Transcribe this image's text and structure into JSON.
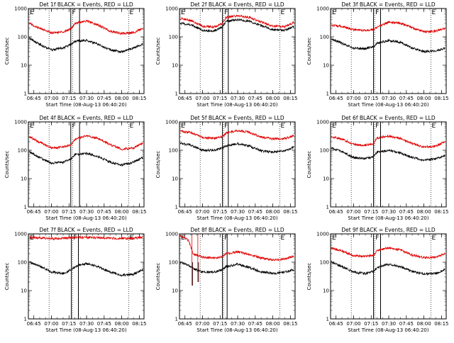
{
  "colors": {
    "events": "#000000",
    "lld": "#e00000",
    "frame": "#000000"
  },
  "shared": {
    "ylabel": "Counts/sec",
    "xlabel": "Start Time (08-Aug-13 06:40:20)",
    "xticks": [
      "06:45",
      "07:00",
      "07:15",
      "07:30",
      "07:45",
      "08:00",
      "08:15"
    ],
    "yticks": [
      "1",
      "10",
      "100",
      "1000"
    ]
  },
  "chart_data": [
    {
      "type": "line",
      "title": "Det 1f BLACK = Events, RED = LLD",
      "ylog": true,
      "ylim": [
        1,
        1000
      ],
      "xlim": [
        "06:40:20",
        "08:19"
      ],
      "xticks": [
        "06:45",
        "07:00",
        "07:15",
        "07:30",
        "07:45",
        "08:00",
        "08:15"
      ],
      "vlines_dotted": [
        "06:58",
        "07:18",
        "08:06"
      ],
      "vbars": [
        [
          "07:16:30",
          "07:24"
        ]
      ],
      "markers": [
        [
          "06:41",
          "E"
        ],
        [
          "07:17",
          "F"
        ],
        [
          "08:06",
          "E"
        ]
      ],
      "series": [
        {
          "name": "Events",
          "x": [
            "06:41",
            "06:50",
            "07:00",
            "07:10",
            "07:17",
            "07:20",
            "07:30",
            "07:40",
            "07:50",
            "08:00",
            "08:10",
            "08:18"
          ],
          "values": [
            90,
            55,
            35,
            40,
            55,
            70,
            75,
            55,
            35,
            30,
            40,
            55
          ]
        },
        {
          "name": "LLD",
          "x": [
            "06:41",
            "06:50",
            "07:00",
            "07:10",
            "07:17",
            "07:20",
            "07:30",
            "07:40",
            "07:50",
            "08:00",
            "08:10",
            "08:18"
          ],
          "values": [
            300,
            200,
            140,
            150,
            200,
            300,
            360,
            260,
            160,
            130,
            140,
            200
          ]
        }
      ]
    },
    {
      "type": "line",
      "title": "Det 2f BLACK = Events, RED = LLD",
      "ylog": true,
      "ylim": [
        1,
        1000
      ],
      "xlim": [
        "06:40:20",
        "08:19"
      ],
      "xticks": [
        "06:45",
        "07:00",
        "07:15",
        "07:30",
        "07:45",
        "08:00",
        "08:15"
      ],
      "vlines_dotted": [
        "06:58",
        "07:18",
        "08:06"
      ],
      "vbars": [
        [
          "07:17",
          "07:22"
        ]
      ],
      "markers": [
        [
          "06:41",
          "E"
        ],
        [
          "07:18",
          "F"
        ],
        [
          "08:06",
          "E"
        ]
      ],
      "series": [
        {
          "name": "Events",
          "x": [
            "06:41",
            "06:50",
            "07:00",
            "07:10",
            "07:17",
            "07:20",
            "07:30",
            "07:40",
            "07:50",
            "08:00",
            "08:10",
            "08:18"
          ],
          "values": [
            300,
            270,
            170,
            160,
            220,
            350,
            400,
            350,
            250,
            180,
            170,
            230
          ]
        },
        {
          "name": "LLD",
          "x": [
            "06:41",
            "06:50",
            "07:00",
            "07:10",
            "07:17",
            "07:20",
            "07:30",
            "07:40",
            "07:50",
            "08:00",
            "08:10",
            "08:18"
          ],
          "values": [
            450,
            380,
            240,
            220,
            300,
            480,
            560,
            480,
            340,
            240,
            230,
            320
          ]
        }
      ]
    },
    {
      "type": "line",
      "title": "Det 3f BLACK = Events, RED = LLD",
      "ylog": true,
      "ylim": [
        1,
        1000
      ],
      "xlim": [
        "06:40:20",
        "08:19"
      ],
      "xticks": [
        "06:45",
        "07:00",
        "07:15",
        "07:30",
        "07:45",
        "08:00",
        "08:15"
      ],
      "vlines_dotted": [
        "06:58",
        "07:18",
        "08:06"
      ],
      "vbars": [
        [
          "07:17",
          "07:23"
        ]
      ],
      "markers": [
        [
          "06:41",
          "E"
        ],
        [
          "07:18",
          "F"
        ],
        [
          "08:06",
          "E"
        ]
      ],
      "series": [
        {
          "name": "Events",
          "x": [
            "06:41",
            "06:50",
            "07:00",
            "07:10",
            "07:17",
            "07:20",
            "07:30",
            "07:40",
            "07:50",
            "08:00",
            "08:10",
            "08:18"
          ],
          "values": [
            85,
            60,
            40,
            38,
            45,
            60,
            75,
            65,
            40,
            30,
            32,
            40
          ]
        },
        {
          "name": "LLD",
          "x": [
            "06:41",
            "06:50",
            "07:00",
            "07:10",
            "07:17",
            "07:20",
            "07:30",
            "07:40",
            "07:50",
            "08:00",
            "08:10",
            "08:18"
          ],
          "values": [
            260,
            230,
            180,
            170,
            180,
            220,
            330,
            300,
            210,
            150,
            160,
            200
          ]
        }
      ]
    },
    {
      "type": "line",
      "title": "Det 4f BLACK = Events, RED = LLD",
      "ylog": true,
      "ylim": [
        1,
        1000
      ],
      "xlim": [
        "06:40:20",
        "08:19"
      ],
      "xticks": [
        "06:45",
        "07:00",
        "07:15",
        "07:30",
        "07:45",
        "08:00",
        "08:15"
      ],
      "vlines_dotted": [
        "06:58",
        "07:18",
        "08:06"
      ],
      "vbars": [
        [
          "07:16:30",
          "07:24"
        ]
      ],
      "markers": [
        [
          "06:41",
          "E"
        ],
        [
          "07:17",
          "F"
        ],
        [
          "08:06",
          "E"
        ]
      ],
      "series": [
        {
          "name": "Events",
          "x": [
            "06:41",
            "06:50",
            "07:00",
            "07:10",
            "07:17",
            "07:20",
            "07:30",
            "07:40",
            "07:50",
            "08:00",
            "08:10",
            "08:18"
          ],
          "values": [
            90,
            55,
            35,
            38,
            50,
            70,
            78,
            60,
            38,
            30,
            38,
            55
          ]
        },
        {
          "name": "LLD",
          "x": [
            "06:41",
            "06:50",
            "07:00",
            "07:10",
            "07:17",
            "07:20",
            "07:30",
            "07:40",
            "07:50",
            "08:00",
            "08:10",
            "08:18"
          ],
          "values": [
            300,
            190,
            120,
            130,
            160,
            240,
            330,
            260,
            160,
            110,
            120,
            180
          ]
        }
      ]
    },
    {
      "type": "line",
      "title": "Det 5f BLACK = Events, RED = LLD",
      "ylog": true,
      "ylim": [
        1,
        1000
      ],
      "xlim": [
        "06:40:20",
        "08:19"
      ],
      "xticks": [
        "06:45",
        "07:00",
        "07:15",
        "07:30",
        "07:45",
        "08:00",
        "08:15"
      ],
      "vlines_dotted": [
        "06:58",
        "07:18",
        "08:06"
      ],
      "vbars": [
        [
          "07:17",
          "07:22"
        ]
      ],
      "markers": [
        [
          "06:41",
          "E"
        ],
        [
          "07:18",
          "F"
        ],
        [
          "08:06",
          "E"
        ]
      ],
      "series": [
        {
          "name": "Events",
          "x": [
            "06:41",
            "06:50",
            "07:00",
            "07:10",
            "07:17",
            "07:20",
            "07:30",
            "07:40",
            "07:50",
            "08:00",
            "08:10",
            "08:18"
          ],
          "values": [
            180,
            150,
            100,
            100,
            120,
            140,
            170,
            140,
            95,
            85,
            95,
            130
          ]
        },
        {
          "name": "LLD",
          "x": [
            "06:41",
            "06:50",
            "07:00",
            "07:10",
            "07:17",
            "07:20",
            "07:30",
            "07:40",
            "07:50",
            "08:00",
            "08:10",
            "08:18"
          ],
          "values": [
            470,
            420,
            280,
            260,
            300,
            400,
            500,
            430,
            290,
            250,
            260,
            320
          ]
        }
      ]
    },
    {
      "type": "line",
      "title": "Det 6f BLACK = Events, RED = LLD",
      "ylog": true,
      "ylim": [
        1,
        1000
      ],
      "xlim": [
        "06:40:20",
        "08:19"
      ],
      "xticks": [
        "06:45",
        "07:00",
        "07:15",
        "07:30",
        "07:45",
        "08:00",
        "08:15"
      ],
      "vlines_dotted": [
        "06:58",
        "07:18",
        "08:06"
      ],
      "vbars": [
        [
          "07:17",
          "07:23"
        ]
      ],
      "markers": [
        [
          "06:41",
          "E"
        ],
        [
          "07:18",
          "F"
        ],
        [
          "08:06",
          "E"
        ]
      ],
      "series": [
        {
          "name": "Events",
          "x": [
            "06:41",
            "06:50",
            "07:00",
            "07:10",
            "07:17",
            "07:20",
            "07:30",
            "07:40",
            "07:50",
            "08:00",
            "08:10",
            "08:18"
          ],
          "values": [
            120,
            90,
            55,
            50,
            60,
            85,
            100,
            80,
            55,
            45,
            50,
            65
          ]
        },
        {
          "name": "LLD",
          "x": [
            "06:41",
            "06:50",
            "07:00",
            "07:10",
            "07:17",
            "07:20",
            "07:30",
            "07:40",
            "07:50",
            "08:00",
            "08:10",
            "08:18"
          ],
          "values": [
            300,
            250,
            160,
            150,
            170,
            270,
            320,
            260,
            170,
            130,
            140,
            200
          ]
        }
      ]
    },
    {
      "type": "line",
      "title": "Det 7f BLACK = Events, RED = LLD",
      "ylog": true,
      "ylim": [
        1,
        1000
      ],
      "xlim": [
        "06:40:20",
        "08:19"
      ],
      "xticks": [
        "06:45",
        "07:00",
        "07:15",
        "07:30",
        "07:45",
        "08:00",
        "08:15"
      ],
      "vlines_dotted": [
        "06:58",
        "07:18",
        "08:06"
      ],
      "vbars": [
        [
          "07:17",
          "07:23"
        ]
      ],
      "markers": [
        [
          "06:41",
          "E"
        ],
        [
          "07:18",
          "F"
        ],
        [
          "08:06",
          "E"
        ]
      ],
      "series": [
        {
          "name": "Events",
          "x": [
            "06:41",
            "06:50",
            "07:00",
            "07:10",
            "07:17",
            "07:20",
            "07:30",
            "07:40",
            "07:50",
            "08:00",
            "08:10",
            "08:18"
          ],
          "values": [
            100,
            75,
            45,
            40,
            55,
            70,
            90,
            70,
            45,
            35,
            38,
            55
          ]
        },
        {
          "name": "LLD",
          "x": [
            "06:41",
            "06:50",
            "07:00",
            "07:10",
            "07:17",
            "07:20",
            "07:30",
            "07:40",
            "07:50",
            "08:00",
            "08:10",
            "08:18"
          ],
          "values": [
            750,
            720,
            680,
            700,
            720,
            740,
            760,
            730,
            700,
            690,
            700,
            750
          ]
        }
      ]
    },
    {
      "type": "line",
      "title": "Det 8f BLACK = Events, RED = LLD",
      "ylog": true,
      "ylim": [
        1,
        1000
      ],
      "xlim": [
        "06:40:20",
        "08:19"
      ],
      "xticks": [
        "06:45",
        "07:00",
        "07:15",
        "07:30",
        "07:45",
        "08:00",
        "08:15"
      ],
      "vlines_dotted": [
        "06:58",
        "07:18",
        "08:06"
      ],
      "vbars": [
        [
          "07:17",
          "07:21"
        ]
      ],
      "markers": [
        [
          "06:41",
          "E"
        ],
        [
          "07:18",
          "F"
        ],
        [
          "08:06",
          "E"
        ]
      ],
      "spikes": [
        [
          "06:51",
          15,
          1000
        ],
        [
          "06:56",
          20,
          1000
        ]
      ],
      "series": [
        {
          "name": "Events",
          "x": [
            "06:41",
            "06:48",
            "06:52",
            "07:00",
            "07:10",
            "07:17",
            "07:20",
            "07:30",
            "07:40",
            "07:50",
            "08:00",
            "08:10",
            "08:18"
          ],
          "values": [
            100,
            80,
            60,
            45,
            45,
            55,
            70,
            85,
            65,
            45,
            40,
            45,
            55
          ]
        },
        {
          "name": "LLD",
          "x": [
            "06:41",
            "06:48",
            "06:52",
            "07:00",
            "07:10",
            "07:17",
            "07:20",
            "07:30",
            "07:40",
            "07:50",
            "08:00",
            "08:10",
            "08:18"
          ],
          "values": [
            850,
            600,
            200,
            150,
            140,
            160,
            200,
            230,
            190,
            140,
            120,
            130,
            160
          ]
        }
      ]
    },
    {
      "type": "line",
      "title": "Det 9f BLACK = Events, RED = LLD",
      "ylog": true,
      "ylim": [
        1,
        1000
      ],
      "xlim": [
        "06:40:20",
        "08:19"
      ],
      "xticks": [
        "06:45",
        "07:00",
        "07:15",
        "07:30",
        "07:45",
        "08:00",
        "08:15"
      ],
      "vlines_dotted": [
        "06:58",
        "07:18",
        "08:06"
      ],
      "vbars": [
        [
          "07:17",
          "07:23"
        ]
      ],
      "markers": [
        [
          "06:41",
          "E"
        ],
        [
          "07:18",
          "F"
        ],
        [
          "08:06",
          "E"
        ]
      ],
      "series": [
        {
          "name": "Events",
          "x": [
            "06:41",
            "06:50",
            "07:00",
            "07:10",
            "07:17",
            "07:20",
            "07:30",
            "07:40",
            "07:50",
            "08:00",
            "08:10",
            "08:18"
          ],
          "values": [
            100,
            70,
            45,
            40,
            48,
            65,
            85,
            70,
            48,
            38,
            40,
            55
          ]
        },
        {
          "name": "LLD",
          "x": [
            "06:41",
            "06:50",
            "07:00",
            "07:10",
            "07:17",
            "07:20",
            "07:30",
            "07:40",
            "07:50",
            "08:00",
            "08:10",
            "08:18"
          ],
          "values": [
            320,
            250,
            170,
            160,
            180,
            260,
            320,
            270,
            180,
            145,
            150,
            200
          ]
        }
      ]
    }
  ]
}
